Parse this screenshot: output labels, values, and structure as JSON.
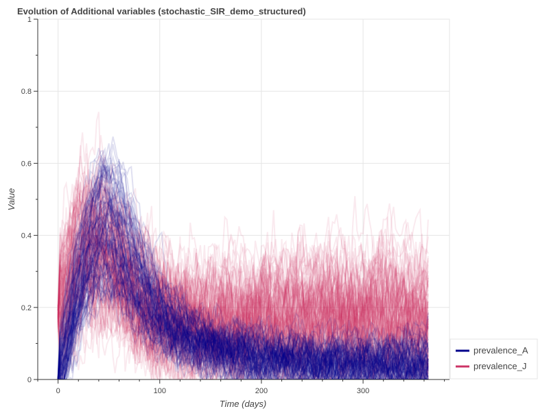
{
  "chart_data": {
    "type": "line",
    "title": "Evolution of Additional variables (stochastic_SIR_demo_structured)",
    "xlabel": "Time (days)",
    "ylabel": "Value",
    "xlim": [
      -20,
      385
    ],
    "ylim": [
      0,
      1
    ],
    "x_ticks": [
      "0",
      "100",
      "200",
      "300"
    ],
    "y_ticks": [
      "0",
      "0.2",
      "0.4",
      "0.6",
      "0.8",
      "1"
    ],
    "grid": true,
    "legend_position": "bottom-right",
    "n_runs_per_series": 100,
    "x_range_days": [
      0,
      365
    ],
    "series": [
      {
        "name": "prevalence_A",
        "color": "#00008b",
        "line_alpha": 0.12,
        "mean_curve_x": [
          0,
          10,
          20,
          30,
          40,
          50,
          60,
          70,
          80,
          100,
          120,
          150,
          200,
          250,
          300,
          365
        ],
        "mean_curve_y": [
          0.0,
          0.12,
          0.25,
          0.34,
          0.4,
          0.42,
          0.38,
          0.32,
          0.26,
          0.18,
          0.13,
          0.09,
          0.06,
          0.05,
          0.045,
          0.045
        ],
        "spread": 0.06
      },
      {
        "name": "prevalence_J",
        "color": "#cc3366",
        "line_alpha": 0.1,
        "mean_curve_x": [
          0,
          10,
          20,
          30,
          40,
          50,
          60,
          80,
          100,
          150,
          200,
          250,
          300,
          365
        ],
        "mean_curve_y": [
          0.18,
          0.27,
          0.33,
          0.36,
          0.36,
          0.33,
          0.29,
          0.22,
          0.17,
          0.14,
          0.15,
          0.16,
          0.16,
          0.15
        ],
        "spread": 0.14
      }
    ]
  }
}
